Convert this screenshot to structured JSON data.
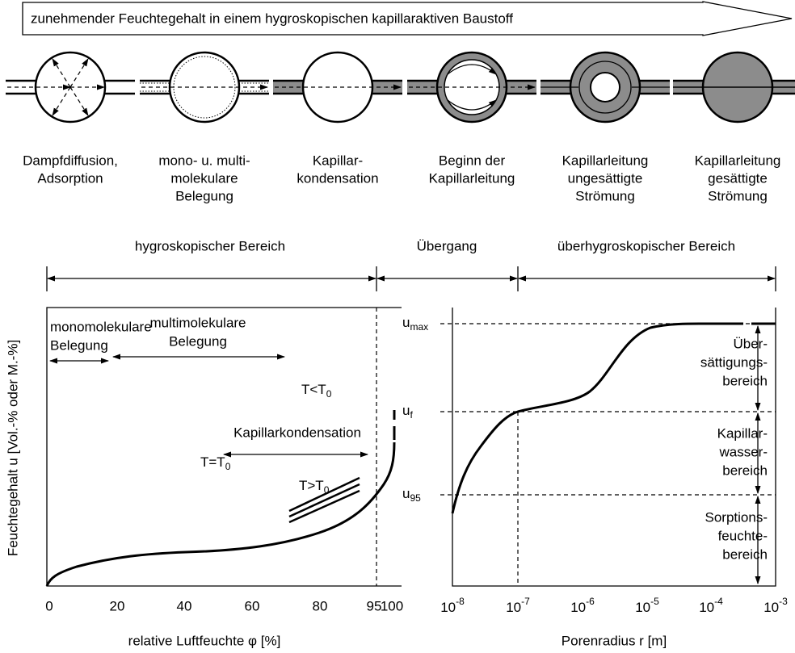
{
  "header": {
    "title": "zunehmender Feuchtegehalt in einem hygroskopischen kapillaraktiven Baustoff"
  },
  "pores": [
    {
      "label": [
        "Dampfdiffusion,",
        "Adsorption"
      ]
    },
    {
      "label": [
        "mono- u. multi-",
        "molekulare",
        "Belegung"
      ]
    },
    {
      "label": [
        "Kapillar-",
        "kondensation"
      ]
    },
    {
      "label": [
        "Beginn der",
        "Kapillarleitung"
      ]
    },
    {
      "label": [
        "Kapillarleitung",
        "ungesättigte",
        "Strömung"
      ]
    },
    {
      "label": [
        "Kapillarleitung",
        "gesättigte",
        "Strömung"
      ]
    }
  ],
  "regions": [
    "hygroskopischer Bereich",
    "Übergang",
    "überhygroskopischer Bereich"
  ],
  "left_chart": {
    "ylabel": "Feuchtegehalt u [Vol.-% oder M.-%]",
    "xlabel": "relative Luftfeuchte φ [%]",
    "xticks": [
      "0",
      "20",
      "40",
      "60",
      "80",
      "95",
      "100"
    ],
    "annotations": [
      {
        "lines": [
          "monomolekulare",
          "Belegung"
        ]
      },
      {
        "lines": [
          "multimolekulare",
          "Belegung"
        ]
      },
      {
        "lines": [
          "Kapillarkondensation"
        ]
      }
    ],
    "curve_labels": [
      {
        "base": "T<T",
        "sub": "0"
      },
      {
        "base": "T=T",
        "sub": "0"
      },
      {
        "base": "T>T",
        "sub": "0"
      }
    ]
  },
  "right_chart": {
    "xlabel": "Porenradius r [m]",
    "xticks": [
      {
        "base": "10",
        "sup": "-8"
      },
      {
        "base": "10",
        "sup": "-7"
      },
      {
        "base": "10",
        "sup": "-6"
      },
      {
        "base": "10",
        "sup": "-5"
      },
      {
        "base": "10",
        "sup": "-4"
      },
      {
        "base": "10",
        "sup": "-3"
      }
    ],
    "yticks": [
      {
        "base": "u",
        "sub": "max"
      },
      {
        "base": "u",
        "sub": "f"
      },
      {
        "base": "u",
        "sub": "95"
      }
    ],
    "zones": [
      {
        "lines": [
          "Über-",
          "sättigungs-",
          "bereich"
        ]
      },
      {
        "lines": [
          "Kapillar-",
          "wasser-",
          "bereich"
        ]
      },
      {
        "lines": [
          "Sorptions-",
          "feuchte-",
          "bereich"
        ]
      }
    ]
  }
}
